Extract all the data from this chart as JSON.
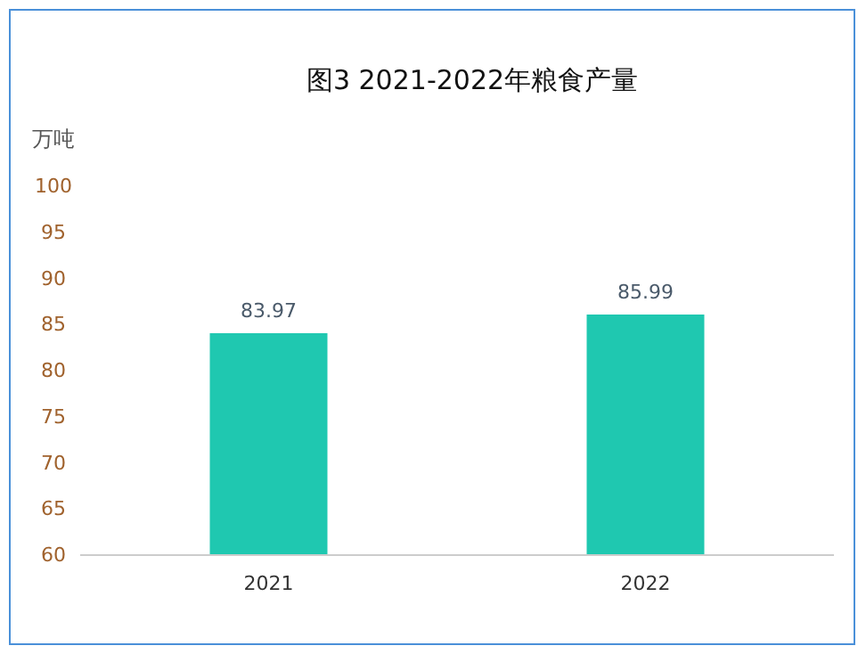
{
  "chart_data": {
    "type": "bar",
    "title": "图3  2021-2022年粮食产量",
    "ylabel": "万吨",
    "categories": [
      "2021",
      "2022"
    ],
    "values": [
      83.97,
      85.99
    ],
    "color": "#1fc8b0",
    "ylim": [
      60,
      100
    ],
    "yticks": [
      60,
      65,
      70,
      75,
      80,
      85,
      90,
      95,
      100
    ],
    "data_labels": true
  }
}
